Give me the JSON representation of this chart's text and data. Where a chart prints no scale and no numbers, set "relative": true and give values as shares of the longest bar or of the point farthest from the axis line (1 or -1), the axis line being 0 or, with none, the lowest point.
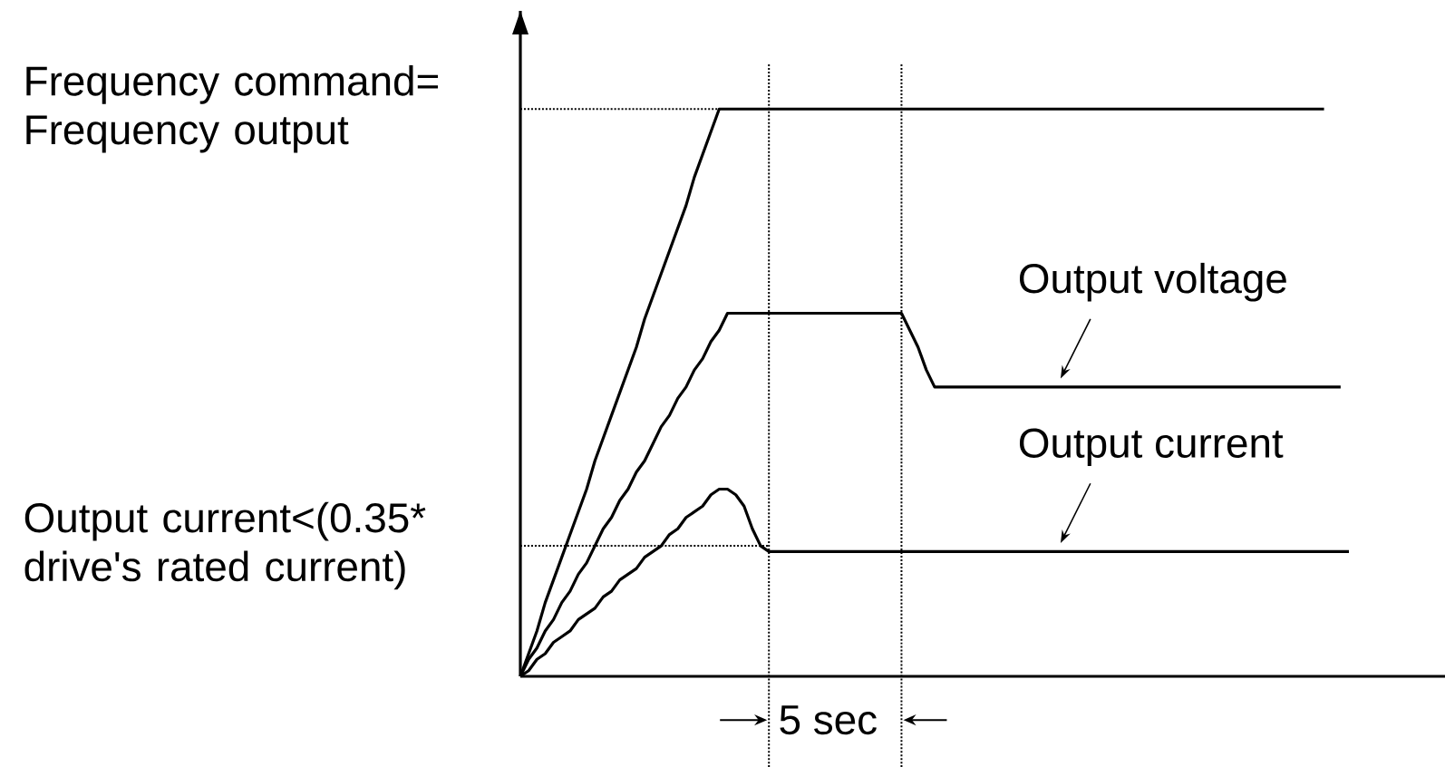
{
  "chart_data": {
    "type": "line",
    "relative": true,
    "line_style": "solid",
    "marker": "none",
    "categories": [
      null,
      null,
      null,
      null,
      null,
      null,
      null,
      null,
      null,
      null,
      null,
      null,
      null,
      null,
      null,
      null,
      null,
      null,
      null,
      null,
      null,
      null,
      null,
      null,
      null,
      null,
      null,
      null,
      null,
      null,
      null,
      null,
      null,
      null,
      null,
      null,
      null,
      null,
      null,
      null,
      null,
      null,
      null,
      null,
      null,
      null,
      null,
      null,
      null,
      null,
      null,
      null,
      null,
      null,
      null,
      null,
      null,
      null,
      null,
      null,
      null,
      null,
      null,
      null,
      null,
      null,
      null,
      null,
      null,
      null,
      null,
      null,
      null,
      null,
      null,
      null,
      null,
      null,
      null,
      null,
      null,
      null,
      null,
      null,
      null,
      null,
      null,
      null,
      null,
      null,
      null,
      null,
      null,
      null,
      null,
      null,
      null,
      null,
      null,
      null,
      null
    ],
    "series": [
      {
        "color": "#000000",
        "values": [
          0,
          0.04,
          0.08,
          0.13,
          0.17,
          0.21,
          0.25,
          0.29,
          0.33,
          0.38,
          0.42,
          0.46,
          0.5,
          0.54,
          0.58,
          0.63,
          0.67,
          0.71,
          0.75,
          0.79,
          0.83,
          0.88,
          0.92,
          0.96,
          1,
          1,
          1,
          1,
          1,
          1,
          1,
          1,
          1,
          1,
          1,
          1,
          1,
          1,
          1,
          1,
          1,
          1,
          1,
          1,
          1,
          1,
          1,
          1,
          1,
          1,
          1,
          1,
          1,
          1,
          1,
          1,
          1,
          1,
          1,
          1,
          1,
          1,
          1,
          1,
          1,
          1,
          1,
          1,
          1,
          1,
          1,
          1,
          1,
          1,
          1,
          1,
          1,
          1,
          1,
          1,
          1,
          1,
          1,
          1,
          1,
          1,
          1,
          1,
          1,
          1,
          1,
          1,
          1,
          1,
          1,
          1,
          1,
          1,
          null,
          null,
          null
        ]
      },
      {
        "name": "Output voltage",
        "color": "#000000",
        "values": [
          0,
          0.03,
          0.05,
          0.08,
          0.1,
          0.13,
          0.15,
          0.18,
          0.2,
          0.23,
          0.26,
          0.28,
          0.31,
          0.33,
          0.36,
          0.38,
          0.41,
          0.44,
          0.46,
          0.49,
          0.51,
          0.54,
          0.56,
          0.59,
          0.61,
          0.64,
          0.64,
          0.64,
          0.64,
          0.64,
          0.64,
          0.64,
          0.64,
          0.64,
          0.64,
          0.64,
          0.64,
          0.64,
          0.64,
          0.64,
          0.64,
          0.64,
          0.64,
          0.64,
          0.64,
          0.64,
          0.64,
          0.61,
          0.58,
          0.54,
          0.51,
          0.51,
          0.51,
          0.51,
          0.51,
          0.51,
          0.51,
          0.51,
          0.51,
          0.51,
          0.51,
          0.51,
          0.51,
          0.51,
          0.51,
          0.51,
          0.51,
          0.51,
          0.51,
          0.51,
          0.51,
          0.51,
          0.51,
          0.51,
          0.51,
          0.51,
          0.51,
          0.51,
          0.51,
          0.51,
          0.51,
          0.51,
          0.51,
          0.51,
          0.51,
          0.51,
          0.51,
          0.51,
          0.51,
          0.51,
          0.51,
          0.51,
          0.51,
          0.51,
          0.51,
          0.51,
          0.51,
          0.51,
          0.51,
          0.51,
          null
        ]
      },
      {
        "name": "Output current",
        "color": "#000000",
        "values": [
          0,
          0.01,
          0.03,
          0.04,
          0.06,
          0.07,
          0.08,
          0.1,
          0.11,
          0.12,
          0.14,
          0.15,
          0.17,
          0.18,
          0.19,
          0.21,
          0.22,
          0.23,
          0.25,
          0.26,
          0.28,
          0.29,
          0.3,
          0.32,
          0.33,
          0.33,
          0.32,
          0.3,
          0.26,
          0.23,
          0.22,
          0.22,
          0.22,
          0.22,
          0.22,
          0.22,
          0.22,
          0.22,
          0.22,
          0.22,
          0.22,
          0.22,
          0.22,
          0.22,
          0.22,
          0.22,
          0.22,
          0.22,
          0.22,
          0.22,
          0.22,
          0.22,
          0.22,
          0.22,
          0.22,
          0.22,
          0.22,
          0.22,
          0.22,
          0.22,
          0.22,
          0.22,
          0.22,
          0.22,
          0.22,
          0.22,
          0.22,
          0.22,
          0.22,
          0.22,
          0.22,
          0.22,
          0.22,
          0.22,
          0.22,
          0.22,
          0.22,
          0.22,
          0.22,
          0.22,
          0.22,
          0.22,
          0.22,
          0.22,
          0.22,
          0.22,
          0.22,
          0.22,
          0.22,
          0.22,
          0.22,
          0.22,
          0.22,
          0.22,
          0.22,
          0.22,
          0.22,
          0.22,
          0.22,
          0.22,
          0.22
        ]
      }
    ],
    "ref_lines": [
      {
        "axis": "y",
        "value": 1,
        "label": "Frequency command= Frequency output",
        "line_style": "dotted"
      },
      {
        "axis": "y",
        "value": 0.23,
        "label": "Output current<(0.35* drive's rated current)",
        "line_style": "dotted"
      }
    ],
    "annotations": [
      "5 sec"
    ]
  }
}
